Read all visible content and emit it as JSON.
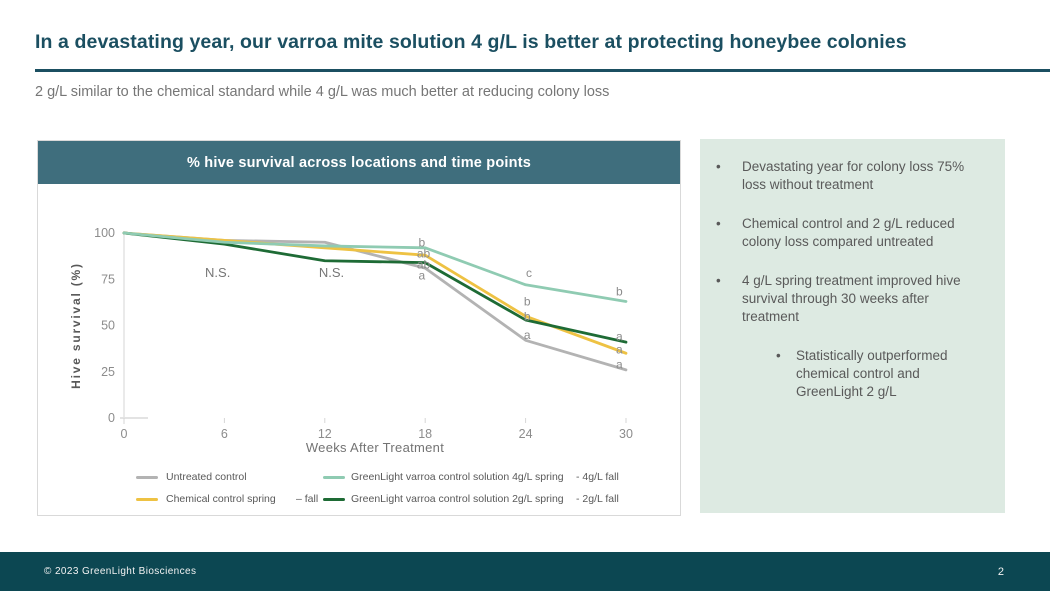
{
  "slide": {
    "title": "In a devastating year, our varroa mite solution 4 g/L is better at protecting honeybee colonies",
    "subtitle": "2 g/L similar to the chemical standard while 4 g/L was much better at reducing colony loss",
    "footer_text": "© 2023 GreenLight Biosciences",
    "page_number": "2"
  },
  "colors": {
    "title_teal": "#1b4f61",
    "chart_header_teal": "#3f6e7d",
    "footer_teal": "#0c4752",
    "sidebar_bg": "#ddeae2",
    "body_gray": "#595959",
    "axis_gray": "#8c8c8c"
  },
  "chart_data": {
    "type": "line",
    "title": "% hive survival across locations and time points",
    "xlabel": "Weeks After Treatment",
    "ylabel": "Hive survival (%)",
    "x": [
      0,
      6,
      12,
      18,
      24,
      30
    ],
    "xlim": [
      0,
      30
    ],
    "ylim": [
      0,
      100
    ],
    "yticks": [
      0,
      25,
      50,
      75,
      100
    ],
    "grid": false,
    "legend_position": "bottom",
    "series": [
      {
        "name": "Untreated control",
        "fall_label": "",
        "color": "#b3b3b3",
        "values": [
          100,
          96,
          95,
          81,
          42,
          26
        ]
      },
      {
        "name": "Chemical control spring",
        "fall_label": "– fall",
        "color": "#eec243",
        "values": [
          100,
          96,
          92,
          88,
          55,
          35
        ]
      },
      {
        "name": "GreenLight  varroa control solution 4g/L spring",
        "fall_label": "- 4g/L fall",
        "color": "#8fcbb2",
        "values": [
          100,
          95,
          93,
          92,
          72,
          63
        ]
      },
      {
        "name": "GreenLight  varroa control solution 2g/L spring",
        "fall_label": "- 2g/L fall",
        "color": "#1e6b35",
        "values": [
          100,
          94,
          85,
          84,
          53,
          41
        ]
      }
    ],
    "annotations": [
      {
        "text": "N.S.",
        "week": 5.6,
        "value": 78.5
      },
      {
        "text": "N.S.",
        "week": 12.4,
        "value": 78.5
      },
      {
        "text": "b",
        "week": 17.8,
        "value": 95
      },
      {
        "text": "ab",
        "week": 17.9,
        "value": 89
      },
      {
        "text": "ab",
        "week": 17.9,
        "value": 83
      },
      {
        "text": "a",
        "week": 17.8,
        "value": 77
      },
      {
        "text": "c",
        "week": 24.2,
        "value": 78.5
      },
      {
        "text": "b",
        "week": 24.1,
        "value": 63
      },
      {
        "text": "b",
        "week": 24.1,
        "value": 55
      },
      {
        "text": "a",
        "week": 24.1,
        "value": 45
      },
      {
        "text": "b",
        "week": 29.6,
        "value": 68.5
      },
      {
        "text": "a",
        "week": 29.6,
        "value": 44
      },
      {
        "text": "a",
        "week": 29.6,
        "value": 37
      },
      {
        "text": "a",
        "week": 29.6,
        "value": 29
      }
    ]
  },
  "sidebar": {
    "bullets": [
      {
        "level": 1,
        "text": "Devastating year for colony loss 75% loss without treatment"
      },
      {
        "level": 1,
        "text": "Chemical control and 2 g/L reduced colony loss compared untreated"
      },
      {
        "level": 1,
        "text": "4 g/L spring treatment improved hive survival through 30 weeks after treatment"
      },
      {
        "level": 2,
        "text": "Statistically outperformed chemical control and GreenLight 2 g/L"
      }
    ]
  }
}
